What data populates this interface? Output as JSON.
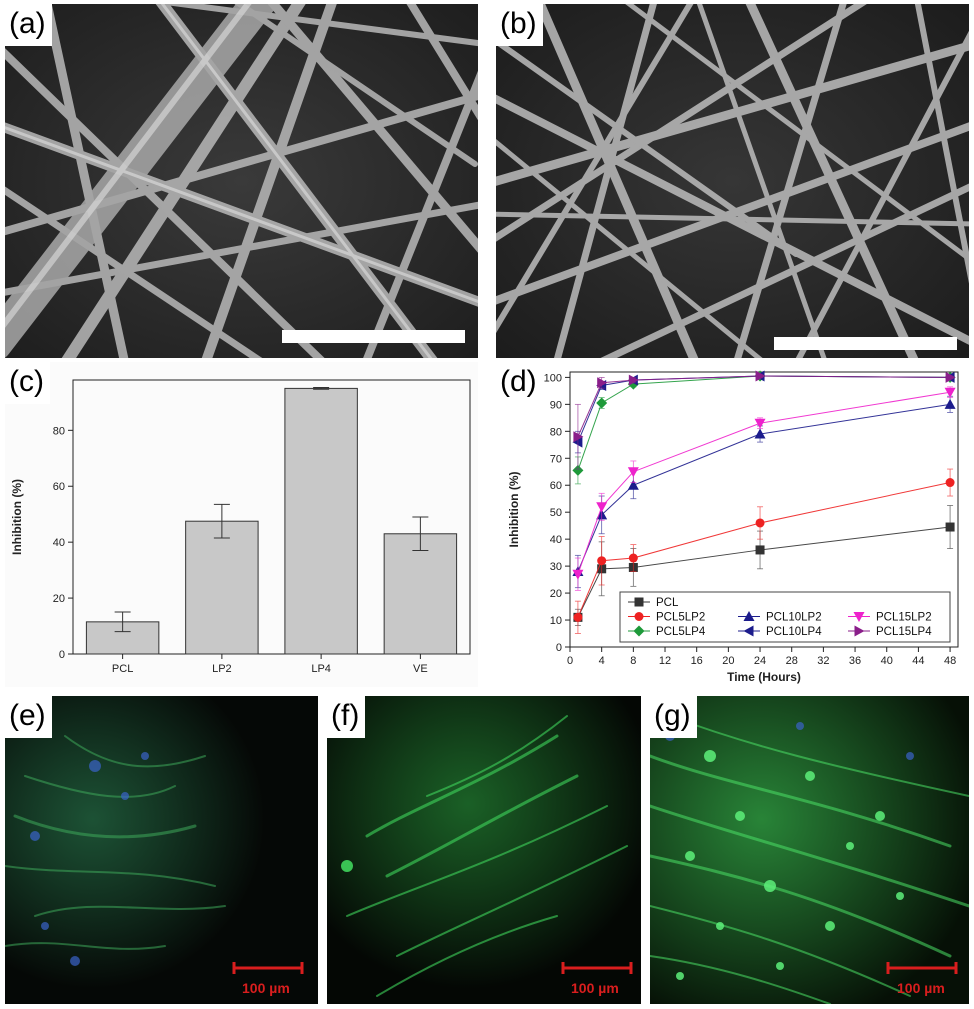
{
  "panels": {
    "a": {
      "label": "(a)"
    },
    "b": {
      "label": "(b)"
    },
    "c": {
      "label": "(c)"
    },
    "d": {
      "label": "(d)"
    },
    "e": {
      "label": "(e)",
      "scale_text": "100 µm"
    },
    "f": {
      "label": "(f)",
      "scale_text": "100 µm"
    },
    "g": {
      "label": "(g)",
      "scale_text": "100 µm"
    }
  },
  "colors": {
    "scalebar": "#d91e1e",
    "fluorescence_green": "#2fd34a",
    "nucleus_blue": "#3a63c9"
  },
  "chart_data": [
    {
      "panel": "c",
      "type": "bar",
      "categories": [
        "PCL",
        "LP2",
        "LP4",
        "VE"
      ],
      "values": [
        11.5,
        47.5,
        95,
        43
      ],
      "errors": [
        3.5,
        6,
        0.3,
        6
      ],
      "ylabel": "Inhibition (%)",
      "xlabel": "",
      "ylim": [
        0,
        98
      ],
      "yticks": [
        "0",
        "20",
        "40",
        "60",
        "80"
      ],
      "grid": false,
      "bar_color": "#c8c8c8"
    },
    {
      "panel": "d",
      "type": "line",
      "ylabel": "Inhibition (%)",
      "xlabel": "Time (Hours)",
      "x": [
        1,
        4,
        8,
        24,
        48
      ],
      "xlim": [
        0,
        49
      ],
      "ylim": [
        0,
        102
      ],
      "xticks": [
        "0",
        "4",
        "8",
        "12",
        "16",
        "20",
        "24",
        "28",
        "32",
        "36",
        "40",
        "44",
        "48"
      ],
      "yticks": [
        "0",
        "10",
        "20",
        "30",
        "40",
        "50",
        "60",
        "70",
        "80",
        "90",
        "100"
      ],
      "legend": "bottom",
      "series": [
        {
          "name": "PCL",
          "color": "#333333",
          "marker": "square",
          "values": [
            11,
            29,
            29.5,
            36,
            44.5
          ],
          "errors": [
            3,
            10,
            7,
            7,
            8
          ]
        },
        {
          "name": "PCL5LP2",
          "color": "#ee2222",
          "marker": "circle",
          "values": [
            11,
            32,
            33,
            46,
            61
          ],
          "errors": [
            6,
            9,
            5,
            6,
            5
          ]
        },
        {
          "name": "PCL10LP2",
          "color": "#1c1c8c",
          "marker": "triangle-up",
          "values": [
            28,
            49,
            60,
            79,
            90
          ],
          "errors": [
            6,
            7,
            5,
            3,
            3
          ]
        },
        {
          "name": "PCL15LP2",
          "color": "#ee22cc",
          "marker": "triangle-down",
          "values": [
            27,
            52,
            65,
            83,
            94.5
          ],
          "errors": [
            6,
            5,
            4,
            2,
            2
          ]
        },
        {
          "name": "PCL5LP4",
          "color": "#1e9a3a",
          "marker": "diamond",
          "values": [
            65.5,
            90.5,
            97.5,
            100.5,
            100
          ],
          "errors": [
            5,
            2,
            1,
            0.5,
            0.5
          ]
        },
        {
          "name": "PCL10LP4",
          "color": "#1c1c8c",
          "marker": "triangle-left",
          "values": [
            76,
            97,
            99,
            100.5,
            100
          ],
          "errors": [
            4,
            1.5,
            1,
            0.5,
            0.5
          ]
        },
        {
          "name": "PCL15LP4",
          "color": "#8a1e8a",
          "marker": "triangle-right",
          "values": [
            78,
            98,
            99,
            100.5,
            100
          ],
          "errors": [
            12,
            2,
            1,
            0.5,
            0.5
          ]
        }
      ]
    }
  ]
}
